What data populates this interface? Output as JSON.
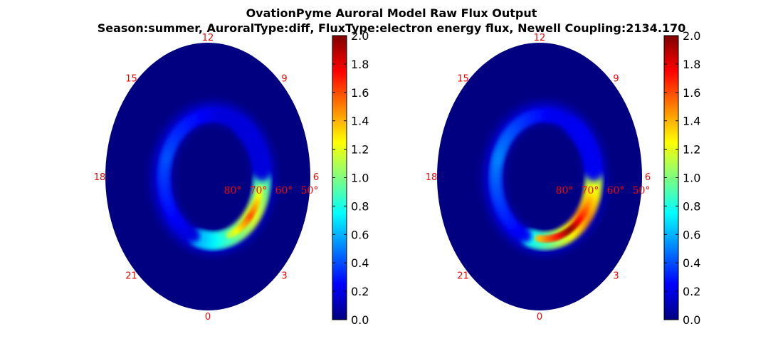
{
  "title": {
    "line1": "OvationPyme Auroral Model Raw Flux Output",
    "line2": "Season:summer, AuroralType:diff, FluxType:electron energy flux, Newell Coupling:2134.170"
  },
  "chart_data": [
    {
      "type": "heatmap",
      "projection": "polar",
      "mlt_labels": [
        "12",
        "9",
        "6",
        "3",
        "0",
        "21",
        "18",
        "15"
      ],
      "lat_labels": [
        "80°",
        "70°",
        "60°",
        "50°"
      ],
      "colormap": "jet",
      "colorbar_range": [
        0.0,
        2.0
      ],
      "colorbar_ticks": [
        "0.0",
        "0.2",
        "0.4",
        "0.6",
        "0.8",
        "1.0",
        "1.2",
        "1.4",
        "1.6",
        "1.8",
        "2.0"
      ],
      "auroral_oval": {
        "colatitude_center_deg": 20,
        "peak_mlt_range": [
          "3",
          "6"
        ],
        "peak_flux": 1.6
      }
    },
    {
      "type": "heatmap",
      "projection": "polar",
      "mlt_labels": [
        "12",
        "9",
        "6",
        "3",
        "0",
        "21",
        "18",
        "15"
      ],
      "lat_labels": [
        "80°",
        "70°",
        "60°",
        "50°"
      ],
      "colormap": "jet",
      "colorbar_range": [
        0.0,
        2.0
      ],
      "colorbar_ticks": [
        "0.0",
        "0.2",
        "0.4",
        "0.6",
        "0.8",
        "1.0",
        "1.2",
        "1.4",
        "1.6",
        "1.8",
        "2.0"
      ],
      "auroral_oval": {
        "colatitude_center_deg": 20,
        "peak_mlt_range": [
          "1",
          "5"
        ],
        "peak_flux": 2.0
      }
    }
  ]
}
